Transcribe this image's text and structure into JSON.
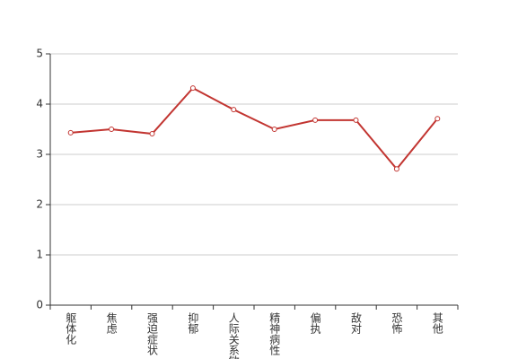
{
  "chart_data": {
    "type": "line",
    "categories": [
      "躯体化",
      "焦虑",
      "强迫症状",
      "抑郁",
      "人际关系敏感",
      "精神病性",
      "偏执",
      "敌对",
      "恐怖",
      "其他"
    ],
    "values": [
      3.43,
      3.5,
      3.41,
      4.32,
      3.89,
      3.5,
      3.68,
      3.68,
      2.71,
      3.71
    ],
    "color": "#c23531",
    "ylim": [
      0,
      5
    ],
    "yticks": [
      0,
      1,
      2,
      3,
      4,
      5
    ],
    "grid": true
  }
}
